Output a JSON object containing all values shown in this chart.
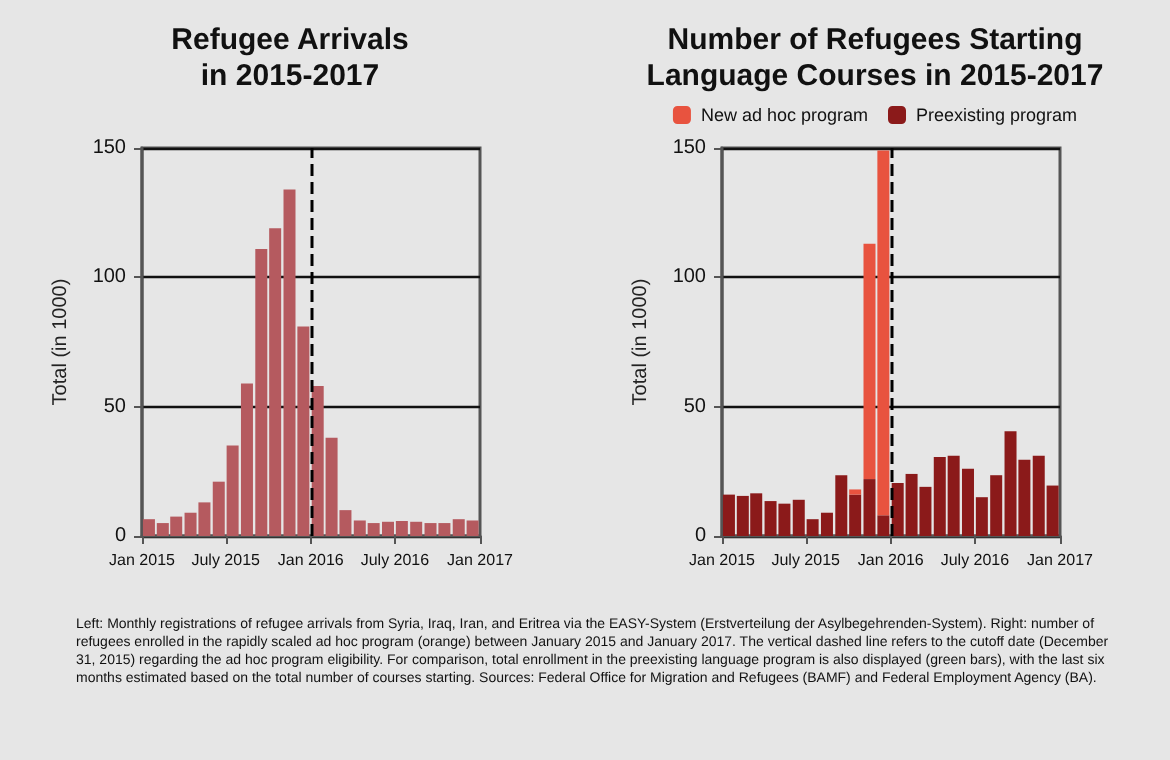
{
  "chart_data": [
    {
      "type": "bar",
      "title": "Refugee Arrivals\nin 2015-2017",
      "ylabel": "Total (in 1000)",
      "x": [
        "2015-01-16",
        "2015-02-15",
        "2015-03-16",
        "2015-04-16",
        "2015-05-16",
        "2015-06-16",
        "2015-07-16",
        "2015-08-16",
        "2015-09-16",
        "2015-10-16",
        "2015-11-16",
        "2015-12-16",
        "2016-01-16",
        "2016-02-15",
        "2016-03-16",
        "2016-04-16",
        "2016-05-16",
        "2016-06-16",
        "2016-07-16",
        "2016-08-16",
        "2016-09-16",
        "2016-10-16",
        "2016-11-16",
        "2016-12-16"
      ],
      "series": [
        {
          "color": "#b55a5f",
          "values": [
            6.5,
            5,
            7.5,
            9,
            13,
            21,
            35,
            59,
            111,
            119,
            134,
            81,
            58,
            38,
            10,
            6,
            5,
            5.5,
            5.8,
            5.5,
            5,
            5,
            6.5,
            6
          ]
        }
      ],
      "xlim": [
        "2015-01-01",
        "2017-01-01"
      ],
      "xticks": [
        {
          "value": "2015-01-01",
          "label": "Jan 2015"
        },
        {
          "value": "2015-07-01",
          "label": "July 2015"
        },
        {
          "value": "2016-01-01",
          "label": "Jan 2016"
        },
        {
          "value": "2016-07-01",
          "label": "July 2016"
        },
        {
          "value": "2017-01-01",
          "label": "Jan 2017"
        }
      ],
      "ylim": [
        0,
        150
      ],
      "yticks": [
        0,
        50,
        100,
        150
      ],
      "grid": "y",
      "ref_lines": [
        {
          "axis": "x",
          "value": "2016-01-01",
          "color": "#000000",
          "line_style": "dashed"
        }
      ],
      "annotations": [
        "Left: Monthly registrations of refugee arrivals from Syria, Iraq, Iran, and Eritrea via the EASY-System (Erstverteilung der Asylbegehrenden-System). Right: number of refugees enrolled in the rapidly scaled ad hoc program (orange) between January 2015 and January 2017. The vertical dashed line refers to the cutoff date (December 31, 2015) regarding the ad hoc program eligibility. For comparison, total enrollment in the preexisting language program is also displayed (green bars), with the last six months estimated based on the total number of courses starting. Sources: Federal Office for Migration and Refugees (BAMF) and Federal Employment Agency (BA)."
      ]
    },
    {
      "type": "bar",
      "title": "Number of Refugees Starting\nLanguage Courses in 2015-2017",
      "ylabel": "Total (in 1000)",
      "stacked": true,
      "legend": "top",
      "x": [
        "2015-01-16",
        "2015-02-15",
        "2015-03-16",
        "2015-04-16",
        "2015-05-16",
        "2015-06-16",
        "2015-07-16",
        "2015-08-16",
        "2015-09-16",
        "2015-10-16",
        "2015-11-16",
        "2015-12-16",
        "2016-01-16",
        "2016-02-15",
        "2016-03-16",
        "2016-04-16",
        "2016-05-16",
        "2016-06-16",
        "2016-07-16",
        "2016-08-16",
        "2016-09-16",
        "2016-10-16",
        "2016-11-16",
        "2016-12-16"
      ],
      "series": [
        {
          "name": "Preexisting program",
          "color": "#8b1a1a",
          "values": [
            16,
            15.5,
            16.5,
            13.5,
            12.5,
            14,
            6.5,
            9,
            23.5,
            16,
            22,
            8,
            20.5,
            24,
            19,
            30.5,
            31,
            26,
            15,
            23.5,
            40.5,
            29.5,
            31,
            19.5
          ]
        },
        {
          "name": "New ad hoc program",
          "color": "#e8533f",
          "values": [
            0,
            0,
            0,
            0,
            0,
            0,
            0,
            0,
            0,
            2,
            91,
            141,
            0,
            0,
            0,
            0,
            0,
            0,
            0,
            0,
            0,
            0,
            0,
            0
          ]
        }
      ],
      "xlim": [
        "2015-01-01",
        "2017-01-01"
      ],
      "xticks": [
        {
          "value": "2015-01-01",
          "label": "Jan 2015"
        },
        {
          "value": "2015-07-01",
          "label": "July 2015"
        },
        {
          "value": "2016-01-01",
          "label": "Jan 2016"
        },
        {
          "value": "2016-07-01",
          "label": "July 2016"
        },
        {
          "value": "2017-01-01",
          "label": "Jan 2017"
        }
      ],
      "ylim": [
        0,
        150
      ],
      "yticks": [
        0,
        50,
        100,
        150
      ],
      "grid": "y",
      "ref_lines": [
        {
          "axis": "x",
          "value": "2016-01-01",
          "color": "#000000",
          "line_style": "dashed"
        }
      ]
    }
  ]
}
